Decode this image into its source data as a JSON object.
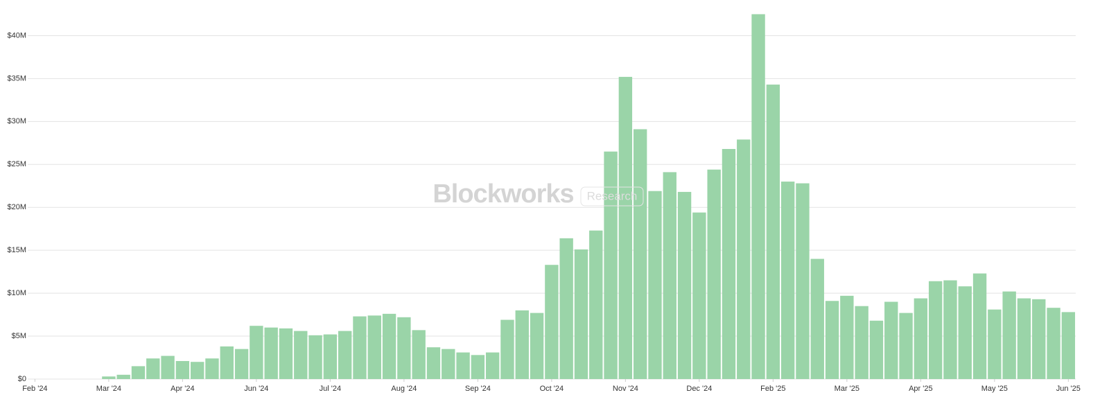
{
  "chart_data": {
    "type": "bar",
    "watermark": {
      "brand": "Blockworks",
      "tag": "Research"
    },
    "color": "#9ad4a8",
    "grid": true,
    "x": [
      5,
      6,
      7,
      8,
      9,
      10,
      11,
      12,
      13,
      14,
      15,
      16,
      17,
      18,
      19,
      20,
      21,
      22,
      23,
      24,
      25,
      26,
      27,
      28,
      29,
      30,
      31,
      32,
      33,
      34,
      35,
      36,
      37,
      38,
      39,
      40,
      41,
      42,
      43,
      44,
      45,
      46,
      47,
      48,
      49,
      50,
      51,
      52,
      53,
      54,
      55,
      56,
      57,
      58,
      59,
      60,
      61,
      62,
      63,
      64,
      65,
      66,
      67,
      68,
      69,
      70
    ],
    "values": [
      0.3,
      0.5,
      1.5,
      2.4,
      2.7,
      2.1,
      2.0,
      2.4,
      3.8,
      3.5,
      6.2,
      6.0,
      5.9,
      5.6,
      5.1,
      5.2,
      5.6,
      7.3,
      7.4,
      7.6,
      7.2,
      5.7,
      3.7,
      3.5,
      3.1,
      2.8,
      3.1,
      6.9,
      8.0,
      7.7,
      13.3,
      16.4,
      15.1,
      17.3,
      26.5,
      35.2,
      29.1,
      21.9,
      24.1,
      21.8,
      19.4,
      24.4,
      26.8,
      27.9,
      42.5,
      34.3,
      23.0,
      22.8,
      14.0,
      9.1,
      9.7,
      8.5,
      6.8,
      9.0,
      7.7,
      9.4,
      11.4,
      11.5,
      10.8,
      12.3,
      8.1,
      10.2,
      9.4,
      9.3,
      8.3,
      7.8
    ],
    "xlim": [
      -0.3,
      70.5
    ],
    "xticks": [
      {
        "value": 0,
        "label": "Feb '24"
      },
      {
        "value": 5,
        "label": "Mar '24"
      },
      {
        "value": 10,
        "label": "Apr '24"
      },
      {
        "value": 15,
        "label": "Jun '24"
      },
      {
        "value": 20,
        "label": "Jul '24"
      },
      {
        "value": 25,
        "label": "Aug '24"
      },
      {
        "value": 30,
        "label": "Sep '24"
      },
      {
        "value": 35,
        "label": "Oct '24"
      },
      {
        "value": 40,
        "label": "Nov '24"
      },
      {
        "value": 45,
        "label": "Dec '24"
      },
      {
        "value": 50,
        "label": "Feb '25"
      },
      {
        "value": 55,
        "label": "Mar '25"
      },
      {
        "value": 60,
        "label": "Apr '25"
      },
      {
        "value": 65,
        "label": "May '25"
      },
      {
        "value": 70,
        "label": "Jun '25"
      }
    ],
    "ylim": [
      0,
      42.7
    ],
    "yticks": [
      {
        "value": 0,
        "label": "$0"
      },
      {
        "value": 5,
        "label": "$5M"
      },
      {
        "value": 10,
        "label": "$10M"
      },
      {
        "value": 15,
        "label": "$15M"
      },
      {
        "value": 20,
        "label": "$20M"
      },
      {
        "value": 25,
        "label": "$25M"
      },
      {
        "value": 30,
        "label": "$30M"
      },
      {
        "value": 35,
        "label": "$35M"
      },
      {
        "value": 40,
        "label": "$40M"
      }
    ]
  }
}
